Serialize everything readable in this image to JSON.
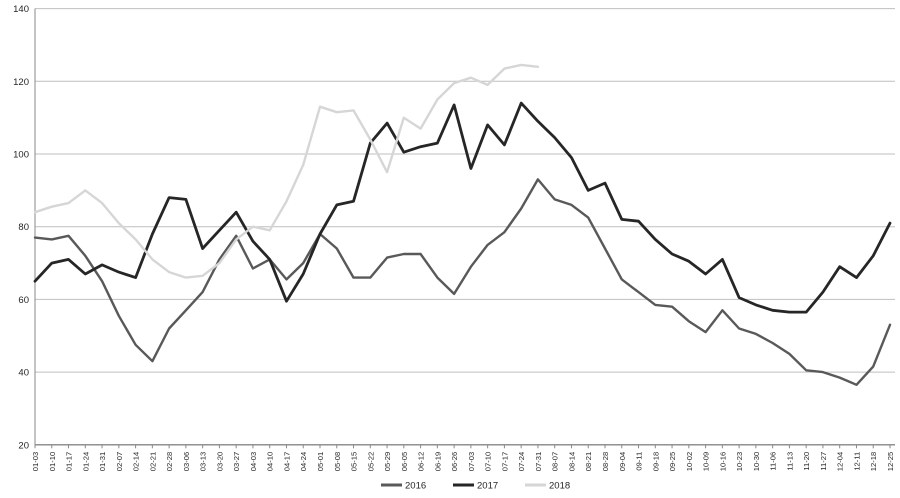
{
  "chart_data": {
    "type": "line",
    "title": "",
    "xlabel": "",
    "ylabel": "",
    "ylim": [
      20,
      140
    ],
    "y_ticks": [
      20,
      40,
      60,
      80,
      100,
      120,
      140
    ],
    "grid": "horizontal",
    "legend_position": "bottom-center",
    "colors": {
      "grid": "#bfbfbf",
      "axis": "#898989",
      "tick_text": "#262626",
      "background": "#ffffff"
    },
    "x_labels": [
      "01-03",
      "01-10",
      "01-17",
      "01-24",
      "01-31",
      "02-07",
      "02-14",
      "02-21",
      "02-28",
      "03-06",
      "03-13",
      "03-20",
      "03-27",
      "04-03",
      "04-10",
      "04-17",
      "04-24",
      "05-01",
      "05-08",
      "05-15",
      "05-22",
      "05-29",
      "06-05",
      "06-12",
      "06-19",
      "06-26",
      "07-03",
      "07-10",
      "07-17",
      "07-24",
      "07-31",
      "08-07",
      "08-14",
      "08-21",
      "08-28",
      "09-04",
      "09-11",
      "09-18",
      "09-25",
      "10-02",
      "10-09",
      "10-16",
      "10-23",
      "10-30",
      "11-06",
      "11-13",
      "11-20",
      "11-27",
      "12-04",
      "12-11",
      "12-18",
      "12-25"
    ],
    "series": [
      {
        "name": "2016",
        "color": "#595959",
        "stroke_width": 2.4,
        "values": [
          77,
          76.5,
          77.5,
          72,
          65,
          55.5,
          47.5,
          43,
          52,
          57,
          62,
          71,
          77.5,
          68.5,
          71,
          65.5,
          70,
          78,
          74,
          66,
          66,
          71.5,
          72.5,
          72.5,
          66,
          61.5,
          69,
          75,
          78.5,
          85,
          93,
          87.5,
          86,
          82.5,
          74,
          65.5,
          62,
          58.5,
          58,
          54,
          51,
          57,
          52,
          50.5,
          48,
          45,
          40.5,
          40,
          38.5,
          36.5,
          41.5,
          53
        ]
      },
      {
        "name": "2017",
        "color": "#262626",
        "stroke_width": 2.8,
        "values": [
          65,
          70,
          71,
          67,
          69.5,
          67.5,
          66,
          78,
          88,
          87.5,
          74,
          79,
          84,
          76,
          71,
          59.5,
          67,
          78,
          86,
          87,
          103,
          108.5,
          100.5,
          102,
          103,
          113.5,
          96,
          108,
          102.5,
          114,
          109,
          104.5,
          99,
          90,
          92,
          82,
          81.5,
          76.5,
          72.5,
          70.5,
          67,
          71,
          60.5,
          58.5,
          57,
          56.5,
          56.5,
          62,
          69,
          66,
          72,
          81
        ]
      },
      {
        "name": "2018",
        "color": "#d6d6d6",
        "stroke_width": 2.4,
        "values": [
          84,
          85.5,
          86.5,
          90,
          86.5,
          81,
          76.5,
          71,
          67.5,
          66,
          66.5,
          70,
          76.5,
          80,
          79,
          87,
          97,
          113,
          111.5,
          112,
          104,
          95,
          110,
          107,
          115,
          119.5,
          121,
          119,
          123.5,
          124.5,
          124
        ]
      }
    ]
  }
}
